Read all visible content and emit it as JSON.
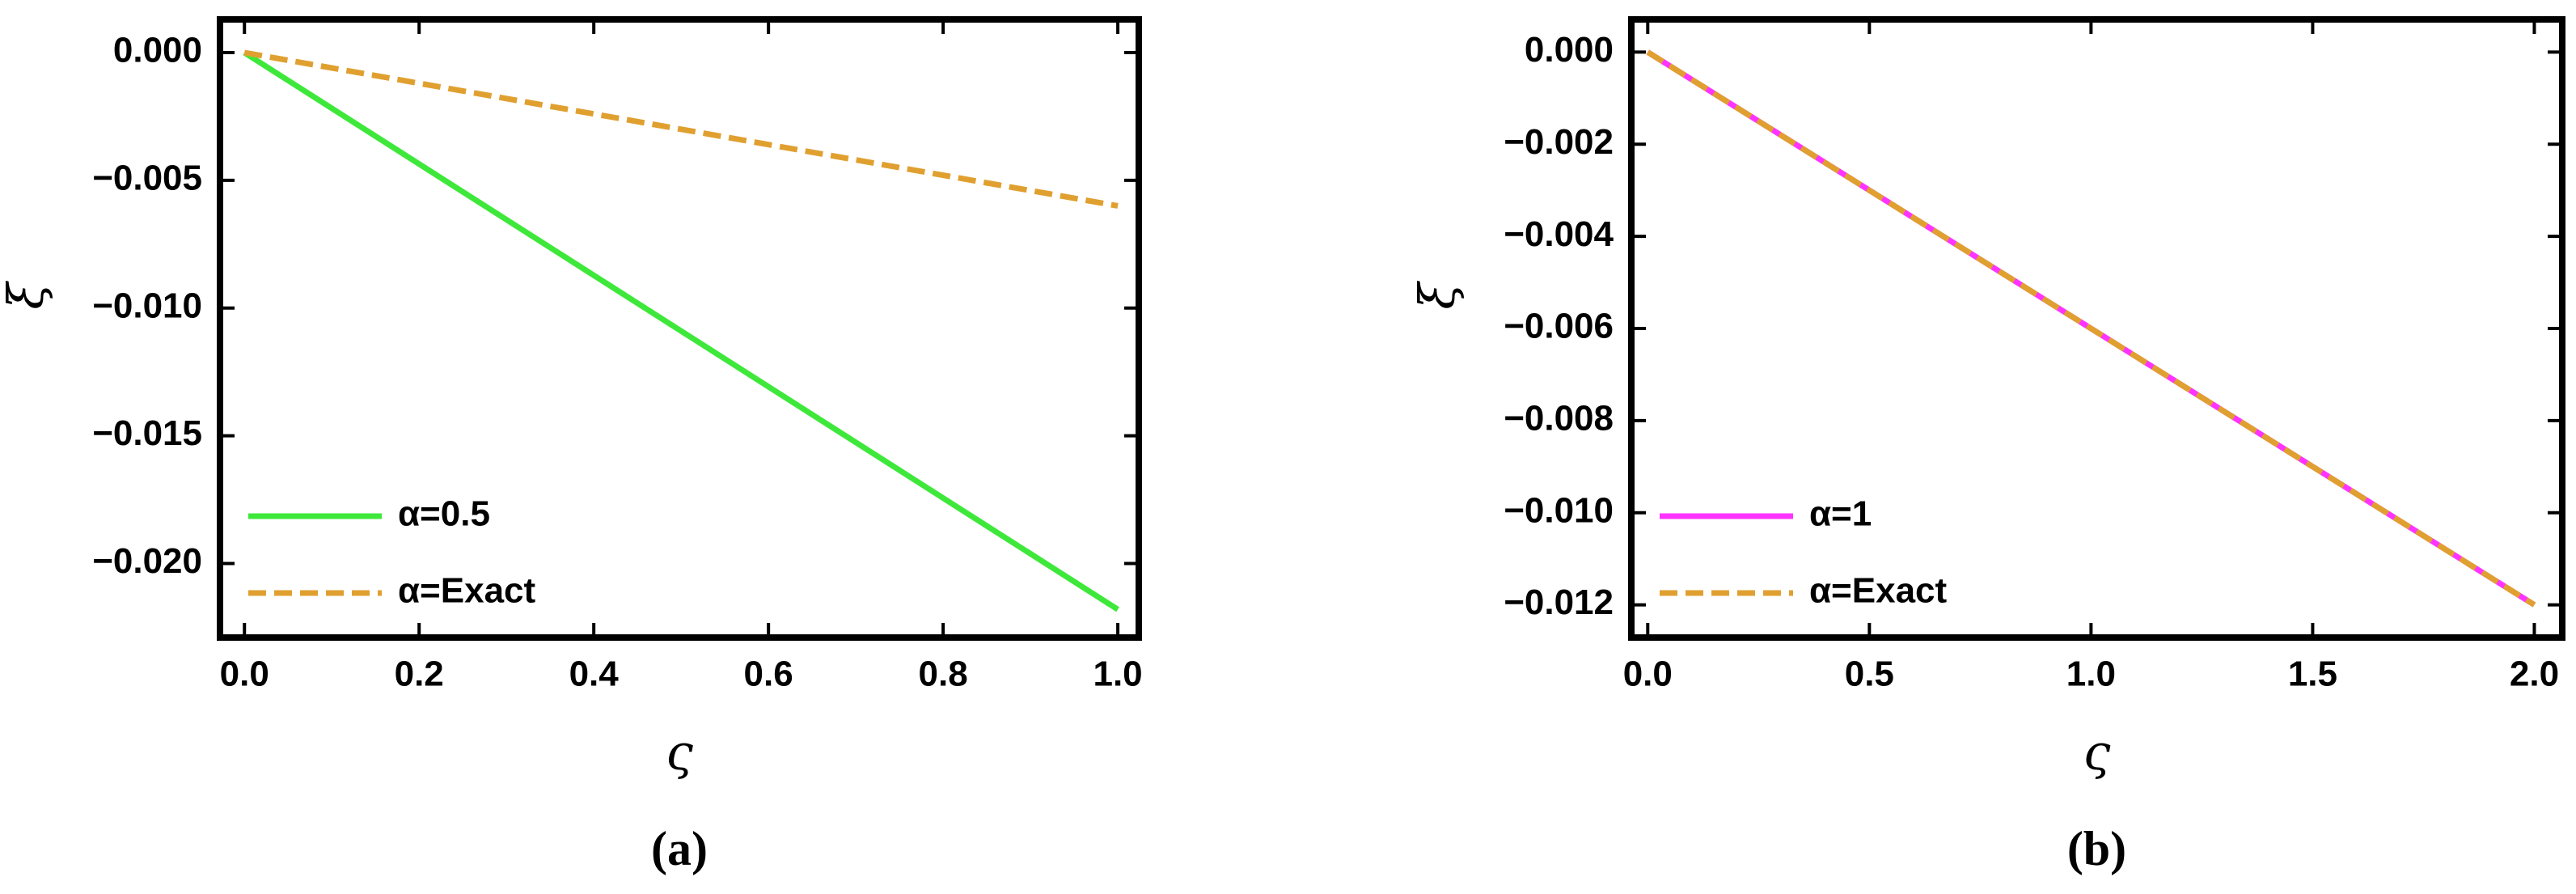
{
  "chart_data": [
    {
      "type": "line",
      "caption": "(a)",
      "xlabel": "ς",
      "ylabel": "ξ",
      "x": [
        0,
        1
      ],
      "series": [
        {
          "name": "α=0.5",
          "color": "#3ee83a",
          "dash": false,
          "values": [
            0,
            -0.0218
          ]
        },
        {
          "name": "α=Exact",
          "color": "#e0a030",
          "dash": true,
          "values": [
            0,
            -0.006
          ]
        }
      ],
      "xlim": [
        -0.028,
        1.024
      ],
      "xticks": [
        {
          "value": 0,
          "label": "0.0"
        },
        {
          "value": 0.2,
          "label": "0.2"
        },
        {
          "value": 0.4,
          "label": "0.4"
        },
        {
          "value": 0.6,
          "label": "0.6"
        },
        {
          "value": 0.8,
          "label": "0.8"
        },
        {
          "value": 1,
          "label": "1.0"
        }
      ],
      "ylim": [
        -0.0229,
        0.0013
      ],
      "yticks": [
        {
          "value": 0,
          "label": "0.000"
        },
        {
          "value": -0.005,
          "label": "−0.005"
        },
        {
          "value": -0.01,
          "label": "−0.010"
        },
        {
          "value": -0.015,
          "label": "−0.015"
        },
        {
          "value": -0.02,
          "label": "−0.020"
        }
      ],
      "legend": "lower left"
    },
    {
      "type": "line",
      "caption": "(b)",
      "xlabel": "ς",
      "ylabel": "ξ",
      "x": [
        0,
        2
      ],
      "series": [
        {
          "name": "α=1",
          "color": "#ff33ff",
          "dash": false,
          "values": [
            0,
            -0.012
          ]
        },
        {
          "name": "α=Exact",
          "color": "#e0a030",
          "dash": true,
          "values": [
            0,
            -0.012
          ]
        }
      ],
      "xlim": [
        -0.037,
        2.063
      ],
      "xticks": [
        {
          "value": 0,
          "label": "0.0"
        },
        {
          "value": 0.5,
          "label": "0.5"
        },
        {
          "value": 1,
          "label": "1.0"
        },
        {
          "value": 1.5,
          "label": "1.5"
        },
        {
          "value": 2,
          "label": "2.0"
        }
      ],
      "ylim": [
        -0.01271,
        0.00071
      ],
      "yticks": [
        {
          "value": 0,
          "label": "0.000"
        },
        {
          "value": -0.002,
          "label": "−0.002"
        },
        {
          "value": -0.004,
          "label": "−0.004"
        },
        {
          "value": -0.006,
          "label": "−0.006"
        },
        {
          "value": -0.008,
          "label": "−0.008"
        },
        {
          "value": -0.01,
          "label": "−0.010"
        },
        {
          "value": -0.012,
          "label": "−0.012"
        }
      ],
      "legend": "lower left"
    }
  ]
}
